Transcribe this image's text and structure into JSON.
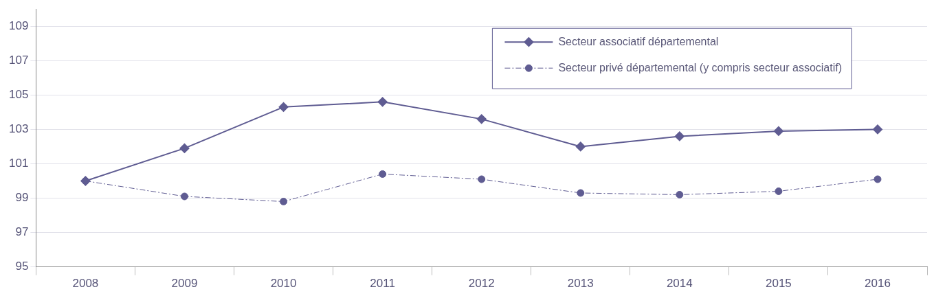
{
  "chart_data": {
    "type": "line",
    "categories": [
      "2008",
      "2009",
      "2010",
      "2011",
      "2012",
      "2013",
      "2014",
      "2015",
      "2016"
    ],
    "series": [
      {
        "name": "Secteur associatif départemental",
        "color": "#5f5c92",
        "marker": "diamond",
        "line_style": "solid",
        "values": [
          100.0,
          101.9,
          104.3,
          104.6,
          103.6,
          102.0,
          102.6,
          102.9,
          103.0
        ]
      },
      {
        "name": "Secteur privé départemental (y compris secteur associatif)",
        "color": "#5f5c92",
        "marker": "circle",
        "line_style": "dashed",
        "values": [
          100.0,
          99.1,
          98.8,
          100.4,
          100.1,
          99.3,
          99.2,
          99.4,
          100.1
        ]
      }
    ],
    "ylim": [
      95,
      110
    ],
    "yticks": [
      95,
      97,
      99,
      101,
      103,
      105,
      107,
      109
    ],
    "grid": "y",
    "legend": "top right"
  }
}
